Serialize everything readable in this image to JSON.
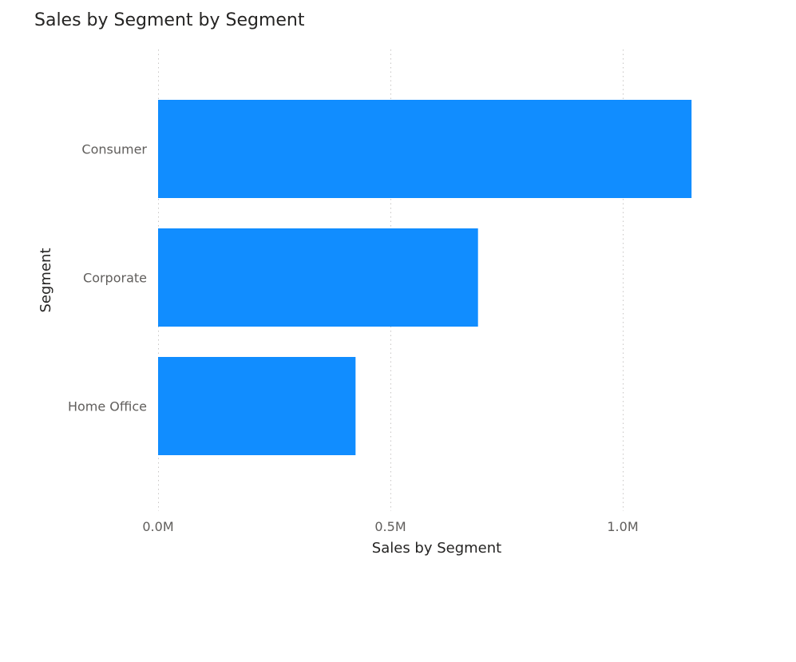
{
  "chart_data": {
    "type": "bar",
    "orientation": "horizontal",
    "title": "Sales by Segment by Segment",
    "xlabel": "Sales by Segment",
    "ylabel": "Segment",
    "categories": [
      "Consumer",
      "Corporate",
      "Home Office"
    ],
    "values": [
      1148060,
      688494,
      424982
    ],
    "xlim": [
      0,
      1250000
    ],
    "xticks": [
      {
        "value": 0,
        "label": "0.0M"
      },
      {
        "value": 500000,
        "label": "0.5M"
      },
      {
        "value": 1000000,
        "label": "1.0M"
      }
    ],
    "grid": "vertical dotted",
    "bar_color": "#118DFF",
    "grid_color": "#c8c6c4"
  }
}
